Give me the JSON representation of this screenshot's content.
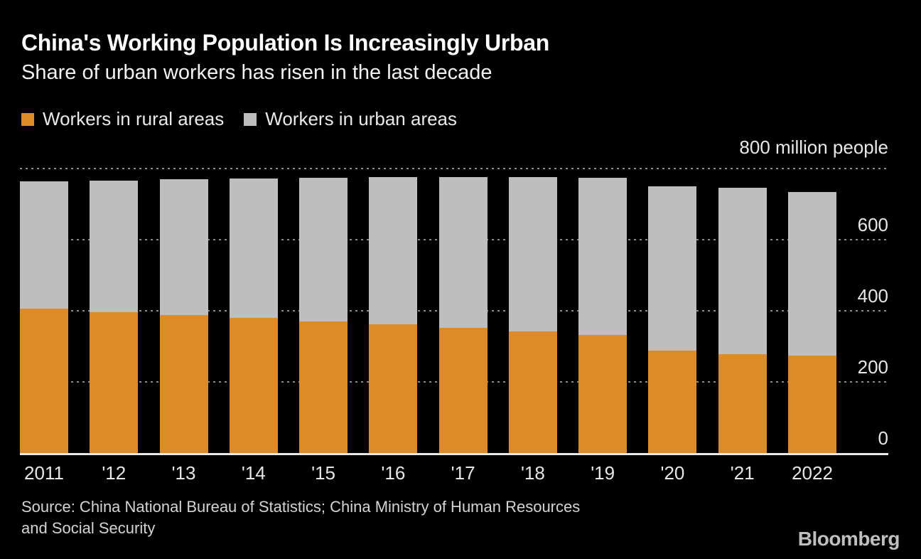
{
  "chart_data": {
    "type": "bar",
    "stacked": true,
    "title": "China's Working Population Is Increasingly Urban",
    "subtitle": "Share of urban workers has risen in the last decade",
    "unit_label": "800 million people",
    "categories": [
      "2011",
      "'12",
      "'13",
      "'14",
      "'15",
      "'16",
      "'17",
      "'18",
      "'19",
      "'20",
      "'21",
      "2022"
    ],
    "series": [
      {
        "name": "Workers in rural areas",
        "color": "#DC8B26",
        "values": [
          405.1,
          396.0,
          387.4,
          379.4,
          370.4,
          361.8,
          351.8,
          341.7,
          332.2,
          287.9,
          277.8,
          274.2
        ]
      },
      {
        "name": "Workers in urban areas",
        "color": "#BEBEBE",
        "values": [
          359.1,
          371.0,
          382.4,
          393.1,
          404.1,
          414.3,
          424.6,
          434.2,
          442.5,
          462.7,
          468.7,
          459.3
        ]
      }
    ],
    "ylim": [
      0,
      800
    ],
    "y_ticks": [
      600,
      400,
      200,
      0
    ],
    "gridlines_at": [
      800,
      600,
      400,
      200
    ],
    "grid_style": "dotted horizontal",
    "legend_position": "top-left",
    "axis_side": "right"
  },
  "source": {
    "line1": "Source: China National Bureau of Statistics; China Ministry of Human Resources",
    "line2": "and Social Security"
  },
  "footer": {
    "logo": "Bloomberg"
  },
  "colors": {
    "background": "#000000",
    "rural_bar": "#DC8B26",
    "urban_bar": "#BEBEBE",
    "gridline": "#8A8A8A",
    "axis_line": "#E8E8E8",
    "title_text": "#FFFFFF",
    "secondary_text": "#D4D4D4"
  }
}
